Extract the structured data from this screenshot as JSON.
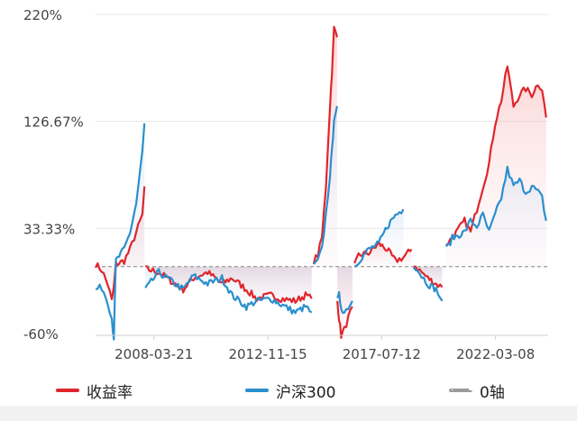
{
  "chart_data": {
    "type": "line",
    "title": "",
    "xlabel": "",
    "ylabel": "",
    "ylim": [
      -60,
      220
    ],
    "y_ticks": [
      "220%",
      "126.67%",
      "33.33%",
      "-60%"
    ],
    "x_ticks": [
      "2008-03-21",
      "2012-11-15",
      "2017-07-12",
      "2022-03-08"
    ],
    "x_range": [
      "2005-11-01",
      "2024-05-01"
    ],
    "legend_position": "bottom",
    "grid": true,
    "series": [
      {
        "name": "收益率",
        "color": "#e0252c",
        "segments": [
          [
            [
              "2005-11-01",
              2
            ],
            [
              "2006-02-01",
              -3
            ],
            [
              "2006-05-01",
              -15
            ],
            [
              "2006-07-01",
              -30
            ],
            [
              "2006-08-01",
              -18
            ],
            [
              "2006-09-01",
              2
            ],
            [
              "2007-01-01",
              5
            ],
            [
              "2007-04-01",
              15
            ],
            [
              "2007-07-01",
              30
            ],
            [
              "2007-10-01",
              45
            ],
            [
              "2007-11-01",
              70
            ]
          ],
          [
            [
              "2007-11-15",
              -2
            ],
            [
              "2008-06-01",
              -5
            ],
            [
              "2009-06-01",
              -20
            ],
            [
              "2009-11-01",
              -10
            ],
            [
              "2010-06-01",
              -5
            ],
            [
              "2011-01-01",
              -15
            ],
            [
              "2011-06-01",
              -10
            ],
            [
              "2012-01-01",
              -20
            ],
            [
              "2012-06-01",
              -28
            ],
            [
              "2013-01-01",
              -25
            ],
            [
              "2013-06-01",
              -28
            ],
            [
              "2014-01-01",
              -30
            ],
            [
              "2014-06-01",
              -25
            ],
            [
              "2014-09-01",
              -28
            ]
          ],
          [
            [
              "2014-10-01",
              5
            ],
            [
              "2014-12-01",
              10
            ],
            [
              "2015-02-01",
              25
            ],
            [
              "2015-04-01",
              70
            ],
            [
              "2015-06-01",
              140
            ],
            [
              "2015-07-01",
              170
            ],
            [
              "2015-08-01",
              208
            ],
            [
              "2015-09-15",
              200
            ]
          ],
          [
            [
              "2015-09-20",
              -30
            ],
            [
              "2015-10-15",
              -45
            ],
            [
              "2015-11-15",
              -60
            ],
            [
              "2016-01-01",
              -55
            ],
            [
              "2016-03-01",
              -45
            ],
            [
              "2016-05-01",
              -35
            ]
          ],
          [
            [
              "2016-06-01",
              0
            ],
            [
              "2016-08-01",
              10
            ],
            [
              "2017-01-01",
              12
            ],
            [
              "2017-06-01",
              20
            ],
            [
              "2017-10-01",
              15
            ],
            [
              "2018-02-01",
              5
            ],
            [
              "2018-06-01",
              8
            ],
            [
              "2018-10-01",
              15
            ]
          ],
          [
            [
              "2018-11-01",
              2
            ],
            [
              "2019-03-01",
              -5
            ],
            [
              "2019-06-01",
              -10
            ],
            [
              "2019-10-01",
              -15
            ],
            [
              "2020-01-01",
              -18
            ]
          ],
          [
            [
              "2020-03-01",
              20
            ],
            [
              "2020-06-01",
              25
            ],
            [
              "2020-12-01",
              40
            ],
            [
              "2021-03-01",
              30
            ],
            [
              "2021-06-01",
              50
            ],
            [
              "2021-09-01",
              70
            ],
            [
              "2021-12-01",
              90
            ],
            [
              "2022-03-01",
              125
            ],
            [
              "2022-06-01",
              145
            ],
            [
              "2022-09-01",
              175
            ],
            [
              "2022-12-01",
              140
            ],
            [
              "2023-03-01",
              150
            ],
            [
              "2023-06-01",
              155
            ],
            [
              "2023-09-01",
              150
            ],
            [
              "2023-12-01",
              160
            ],
            [
              "2024-02-01",
              155
            ],
            [
              "2024-04-01",
              130
            ]
          ]
        ]
      },
      {
        "name": "沪深300",
        "color": "#2a8fce",
        "segments": [
          [
            [
              "2005-11-01",
              -20
            ],
            [
              "2006-02-01",
              -18
            ],
            [
              "2006-05-01",
              -30
            ],
            [
              "2006-07-01",
              -45
            ],
            [
              "2006-08-01",
              -62
            ],
            [
              "2006-09-01",
              5
            ],
            [
              "2007-01-01",
              15
            ],
            [
              "2007-04-01",
              30
            ],
            [
              "2007-07-01",
              55
            ],
            [
              "2007-10-01",
              100
            ],
            [
              "2007-11-01",
              125
            ]
          ],
          [
            [
              "2007-11-15",
              -20
            ],
            [
              "2008-06-01",
              -5
            ],
            [
              "2009-06-01",
              -20
            ],
            [
              "2009-11-01",
              -8
            ],
            [
              "2010-06-01",
              -15
            ],
            [
              "2011-01-01",
              -10
            ],
            [
              "2011-06-01",
              -25
            ],
            [
              "2012-01-01",
              -35
            ],
            [
              "2012-06-01",
              -30
            ],
            [
              "2013-01-01",
              -28
            ],
            [
              "2013-06-01",
              -33
            ],
            [
              "2014-01-01",
              -40
            ],
            [
              "2014-06-01",
              -35
            ],
            [
              "2014-09-01",
              -40
            ]
          ],
          [
            [
              "2014-10-01",
              0
            ],
            [
              "2014-12-01",
              5
            ],
            [
              "2015-02-01",
              15
            ],
            [
              "2015-04-01",
              45
            ],
            [
              "2015-06-01",
              80
            ],
            [
              "2015-07-01",
              100
            ],
            [
              "2015-08-01",
              130
            ],
            [
              "2015-09-15",
              140
            ]
          ],
          [
            [
              "2015-09-20",
              -30
            ],
            [
              "2015-10-15",
              -25
            ],
            [
              "2015-11-15",
              -35
            ],
            [
              "2016-01-01",
              -40
            ],
            [
              "2016-03-01",
              -35
            ],
            [
              "2016-05-01",
              -30
            ]
          ],
          [
            [
              "2016-06-01",
              0
            ],
            [
              "2016-08-01",
              5
            ],
            [
              "2017-01-01",
              15
            ],
            [
              "2017-06-01",
              20
            ],
            [
              "2017-10-01",
              35
            ],
            [
              "2018-02-01",
              45
            ],
            [
              "2018-06-01",
              50
            ]
          ],
          [
            [
              "2018-11-01",
              2
            ],
            [
              "2019-03-01",
              -8
            ],
            [
              "2019-06-01",
              -15
            ],
            [
              "2019-10-01",
              -20
            ],
            [
              "2020-01-01",
              -30
            ]
          ],
          [
            [
              "2020-03-01",
              15
            ],
            [
              "2020-06-01",
              25
            ],
            [
              "2020-12-01",
              30
            ],
            [
              "2021-03-01",
              40
            ],
            [
              "2021-06-01",
              35
            ],
            [
              "2021-09-01",
              45
            ],
            [
              "2021-12-01",
              30
            ],
            [
              "2022-03-01",
              45
            ],
            [
              "2022-06-01",
              60
            ],
            [
              "2022-09-01",
              85
            ],
            [
              "2022-12-01",
              70
            ],
            [
              "2023-03-01",
              75
            ],
            [
              "2023-06-01",
              65
            ],
            [
              "2023-09-01",
              70
            ],
            [
              "2023-12-01",
              65
            ],
            [
              "2024-02-01",
              60
            ],
            [
              "2024-04-01",
              40
            ]
          ]
        ]
      }
    ],
    "reference_line": {
      "name": "0轴",
      "value": 0,
      "color": "#9a9a9a",
      "style": "dashed"
    }
  },
  "legend": {
    "items": [
      {
        "label": "收益率",
        "color": "#e0252c"
      },
      {
        "label": "沪深300",
        "color": "#2a8fce"
      },
      {
        "label": "0轴",
        "color": "#9a9a9a"
      }
    ]
  }
}
